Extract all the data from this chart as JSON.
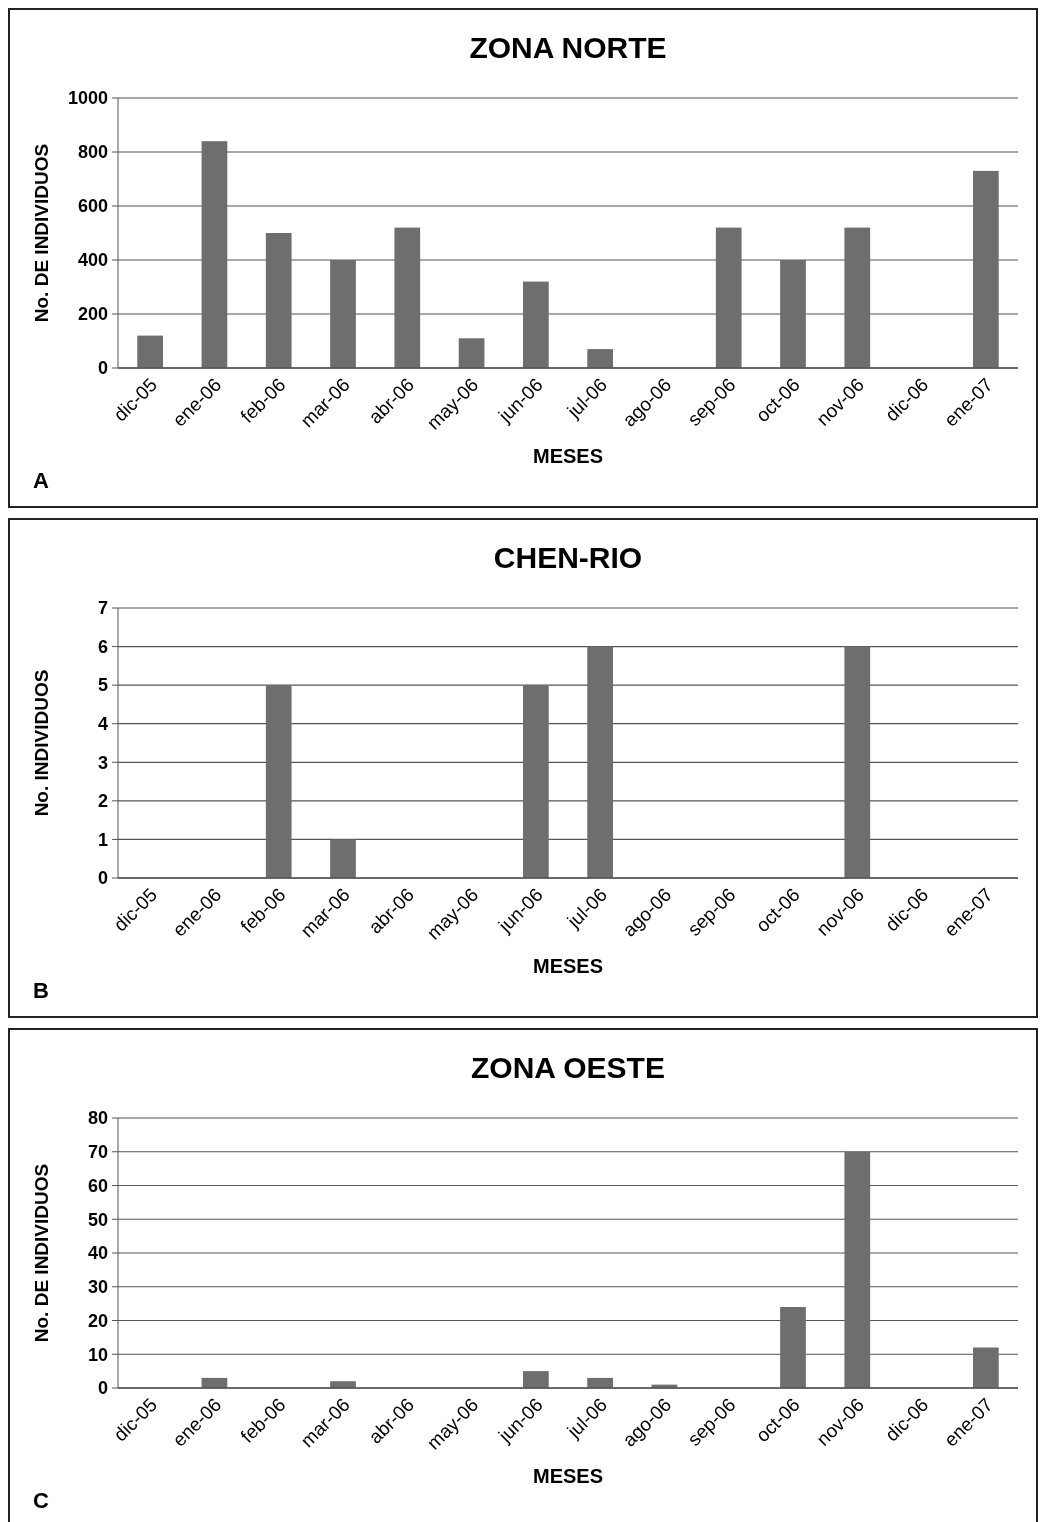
{
  "chart_data": [
    {
      "type": "bar",
      "title": "ZONA NORTE",
      "xlabel": "MESES",
      "ylabel": "No. DE INDIVIDUOS",
      "annotations": [
        "A"
      ],
      "categories": [
        "dic-05",
        "ene-06",
        "feb-06",
        "mar-06",
        "abr-06",
        "may-06",
        "jun-06",
        "jul-06",
        "ago-06",
        "sep-06",
        "oct-06",
        "nov-06",
        "dic-06",
        "ene-07"
      ],
      "values": [
        120,
        840,
        500,
        400,
        520,
        110,
        320,
        70,
        0,
        520,
        400,
        520,
        0,
        730
      ],
      "color": "#6e6e6e",
      "ylim": [
        0,
        1000
      ],
      "yticks": [
        0,
        200,
        400,
        600,
        800,
        1000
      ],
      "grid": "y"
    },
    {
      "type": "bar",
      "title": "CHEN-RIO",
      "xlabel": "MESES",
      "ylabel": "No. INDIVIDUOS",
      "annotations": [
        "B"
      ],
      "categories": [
        "dic-05",
        "ene-06",
        "feb-06",
        "mar-06",
        "abr-06",
        "may-06",
        "jun-06",
        "jul-06",
        "ago-06",
        "sep-06",
        "oct-06",
        "nov-06",
        "dic-06",
        "ene-07"
      ],
      "values": [
        0,
        0,
        5,
        1,
        0,
        0,
        5,
        6,
        0,
        0,
        0,
        6,
        0,
        0
      ],
      "color": "#6e6e6e",
      "ylim": [
        0,
        7
      ],
      "yticks": [
        0,
        1,
        2,
        3,
        4,
        5,
        6,
        7
      ],
      "grid": "y"
    },
    {
      "type": "bar",
      "title": "ZONA OESTE",
      "xlabel": "MESES",
      "ylabel": "No. DE INDIVIDUOS",
      "annotations": [
        "C"
      ],
      "categories": [
        "dic-05",
        "ene-06",
        "feb-06",
        "mar-06",
        "abr-06",
        "may-06",
        "jun-06",
        "jul-06",
        "ago-06",
        "sep-06",
        "oct-06",
        "nov-06",
        "dic-06",
        "ene-07"
      ],
      "values": [
        0,
        3,
        0,
        2,
        0,
        0,
        5,
        3,
        1,
        0,
        24,
        70,
        0,
        12
      ],
      "color": "#6e6e6e",
      "ylim": [
        0,
        80
      ],
      "yticks": [
        0,
        10,
        20,
        30,
        40,
        50,
        60,
        70,
        80
      ],
      "grid": "y"
    }
  ]
}
